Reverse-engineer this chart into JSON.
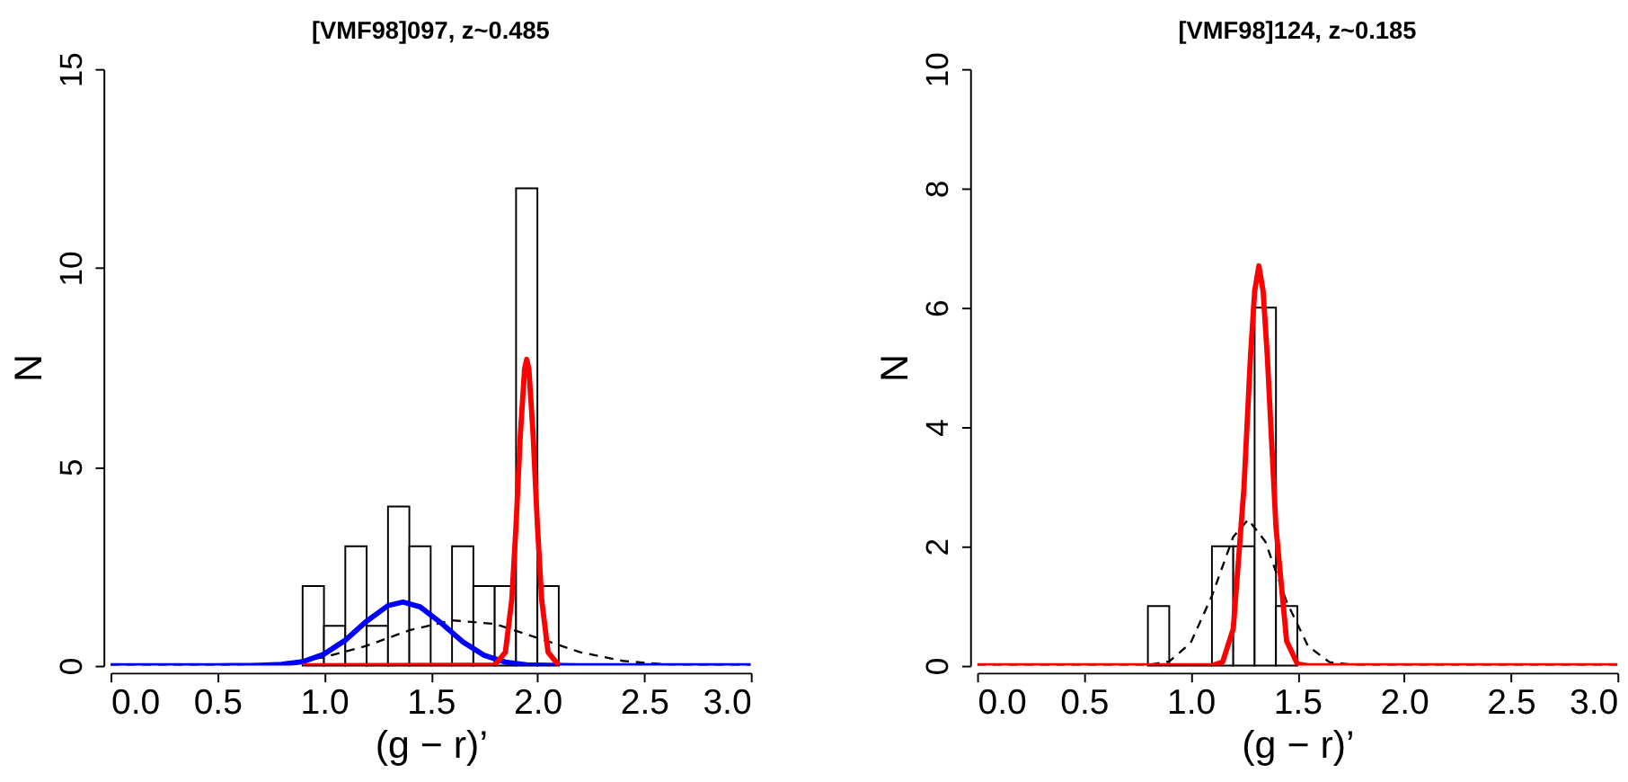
{
  "chart_data": [
    {
      "type": "histogram",
      "title": "[VMF98]097,  z~0.485",
      "xlabel": "(g − r)’",
      "ylabel": "N",
      "bins": [
        0.9,
        1.0,
        1.1,
        1.2,
        1.3,
        1.4,
        1.5,
        1.6,
        1.7,
        1.8,
        1.9,
        2.0,
        2.1
      ],
      "values": [
        2,
        1,
        3,
        1,
        4,
        3,
        0,
        3,
        2,
        2,
        12,
        2
      ],
      "color": "#000000",
      "xlim": [
        0,
        3
      ],
      "xticks": [
        {
          "value": 0,
          "label": "0.0"
        },
        0.5,
        {
          "value": 1,
          "label": "1.0"
        },
        1.5,
        {
          "value": 2,
          "label": "2.0"
        },
        2.5,
        {
          "value": 3,
          "label": "3.0"
        }
      ],
      "ylim": [
        0,
        15
      ],
      "yticks": [
        0,
        5,
        10,
        15
      ],
      "grid": false,
      "series": [
        {
          "type": "line",
          "color": "#000000",
          "line_style": "dashed",
          "x": [
            0,
            0.5,
            0.8,
            1.0,
            1.2,
            1.4,
            1.6,
            1.8,
            2.0,
            2.2,
            2.4,
            2.6,
            3.0
          ],
          "values": [
            0,
            0.01,
            0.06,
            0.21,
            0.5,
            0.89,
            1.14,
            1.05,
            0.7,
            0.34,
            0.12,
            0.03,
            0
          ]
        },
        {
          "type": "line",
          "color": "#0000ff",
          "line_style": "solid",
          "x": [
            0,
            0.5,
            0.7,
            0.8,
            0.9,
            1.0,
            1.1,
            1.2,
            1.3,
            1.37,
            1.45,
            1.55,
            1.65,
            1.75,
            1.85,
            1.95,
            2.05,
            2.2,
            2.5,
            3.0
          ],
          "values": [
            0,
            0,
            0.01,
            0.03,
            0.1,
            0.29,
            0.64,
            1.12,
            1.51,
            1.6,
            1.48,
            1.07,
            0.6,
            0.26,
            0.09,
            0.02,
            0.01,
            0,
            0,
            0
          ]
        },
        {
          "type": "line",
          "color": "#ff0000",
          "line_style": "solid",
          "x": [
            0.9,
            1.8,
            1.85,
            1.88,
            1.9,
            1.92,
            1.94,
            1.95,
            1.96,
            1.98,
            2.0,
            2.02,
            2.05,
            2.1
          ],
          "values": [
            0,
            0.01,
            0.34,
            1.66,
            3.53,
            5.8,
            7.46,
            7.7,
            7.46,
            5.8,
            3.53,
            1.66,
            0.34,
            0.01
          ]
        }
      ]
    },
    {
      "type": "histogram",
      "title": "[VMF98]124,  z~0.185",
      "xlabel": "(g − r)’",
      "ylabel": "N",
      "bins": [
        0.8,
        0.9,
        1.0,
        1.1,
        1.2,
        1.3,
        1.4,
        1.5
      ],
      "values": [
        1,
        0,
        0,
        2,
        2,
        6,
        1
      ],
      "color": "#000000",
      "xlim": [
        0,
        3
      ],
      "xticks": [
        {
          "value": 0,
          "label": "0.0"
        },
        0.5,
        {
          "value": 1,
          "label": "1.0"
        },
        1.5,
        {
          "value": 2,
          "label": "2.0"
        },
        2.5,
        {
          "value": 3,
          "label": "3.0"
        }
      ],
      "ylim": [
        0,
        10
      ],
      "yticks": [
        0,
        2,
        4,
        6,
        8,
        10
      ],
      "grid": false,
      "series": [
        {
          "type": "line",
          "color": "#000000",
          "line_style": "dashed",
          "x": [
            0,
            0.7,
            0.8,
            0.9,
            1.0,
            1.1,
            1.2,
            1.27,
            1.35,
            1.45,
            1.55,
            1.65,
            1.8,
            3.0
          ],
          "values": [
            0,
            0,
            0.01,
            0.07,
            0.38,
            1.17,
            2.16,
            2.45,
            2.08,
            1.07,
            0.33,
            0.06,
            0,
            0
          ]
        },
        {
          "type": "line",
          "color": "#ff0000",
          "line_style": "solid",
          "x": [
            0,
            1.1,
            1.15,
            1.2,
            1.25,
            1.28,
            1.3,
            1.32,
            1.34,
            1.36,
            1.4,
            1.45,
            1.5,
            1.55,
            3.0
          ],
          "values": [
            0,
            0,
            0.06,
            0.62,
            2.98,
            5.15,
            6.27,
            6.7,
            6.27,
            5.15,
            2.32,
            0.41,
            0.03,
            0,
            0
          ]
        }
      ]
    }
  ]
}
